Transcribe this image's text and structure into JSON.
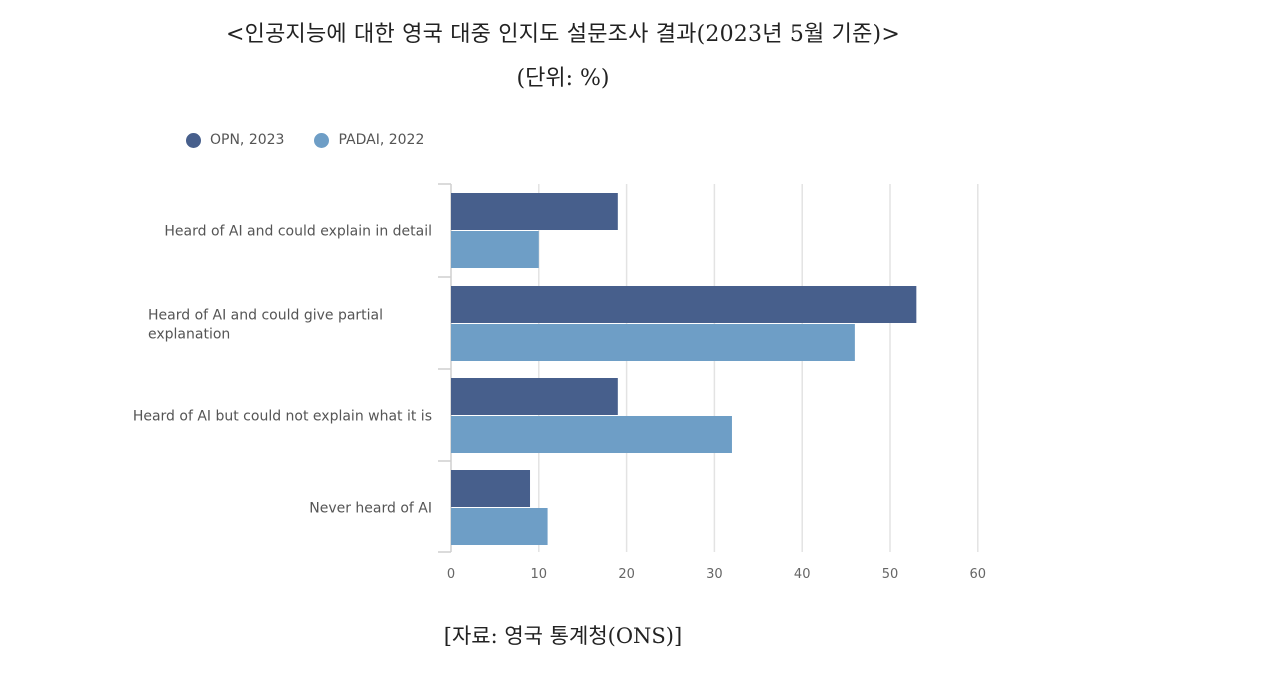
{
  "title": "<인공지능에 대한 영국 대중 인지도 설문조사 결과(2023년 5월 기준)>",
  "subtitle": "(단위: %)",
  "source": "[자료: 영국 통계청(ONS)]",
  "legend": [
    {
      "name": "OPN, 2023",
      "color": "#475f8c"
    },
    {
      "name": "PADAI, 2022",
      "color": "#6e9ec6"
    }
  ],
  "chart_data": {
    "type": "bar",
    "orientation": "horizontal",
    "categories": [
      [
        "Heard of AI and could explain in detail"
      ],
      [
        "Heard of AI and could give partial",
        "explanation"
      ],
      [
        "Heard of AI but could not explain what it is"
      ],
      [
        "Never heard of AI"
      ]
    ],
    "series": [
      {
        "name": "OPN, 2023",
        "color": "#475f8c",
        "values": [
          19,
          53,
          19,
          9
        ]
      },
      {
        "name": "PADAI, 2022",
        "color": "#6e9ec6",
        "values": [
          10,
          46,
          32,
          11
        ]
      }
    ],
    "xlim": [
      0,
      60
    ],
    "xticks": [
      "0",
      "10",
      "20",
      "30",
      "40",
      "50",
      "60"
    ],
    "grid": true,
    "legend_position": "top-left"
  }
}
